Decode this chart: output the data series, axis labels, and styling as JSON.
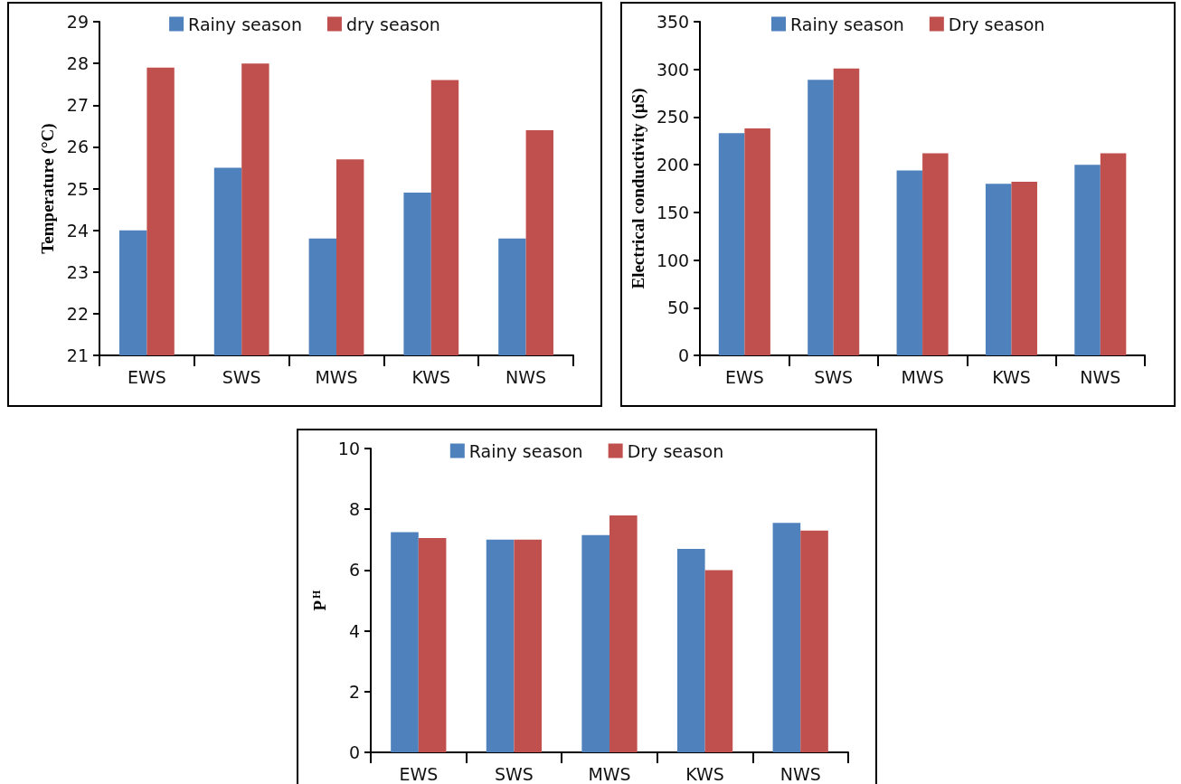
{
  "chart_data": [
    {
      "type": "bar",
      "ylabel": "Temperature (°C)",
      "categories": [
        "EWS",
        "SWS",
        "MWS",
        "KWS",
        "NWS"
      ],
      "ylim": [
        21,
        29
      ],
      "yticks": [
        21,
        22,
        23,
        24,
        25,
        26,
        27,
        28,
        29
      ],
      "grid": false,
      "legend": "top",
      "series": [
        {
          "name": "Rainy season",
          "color": "#4f81bd",
          "values": [
            24.0,
            25.5,
            23.8,
            24.9,
            23.8
          ]
        },
        {
          "name": "dry season",
          "color": "#c0504d",
          "values": [
            27.9,
            28.0,
            25.7,
            27.6,
            26.4
          ]
        }
      ]
    },
    {
      "type": "bar",
      "ylabel": "Electrical conductivity (µS)",
      "categories": [
        "EWS",
        "SWS",
        "MWS",
        "KWS",
        "NWS"
      ],
      "ylim": [
        0,
        350
      ],
      "yticks": [
        0,
        50,
        100,
        150,
        200,
        250,
        300,
        350
      ],
      "grid": false,
      "legend": "top",
      "series": [
        {
          "name": "Rainy season",
          "color": "#4f81bd",
          "values": [
            233,
            289,
            194,
            180,
            200
          ]
        },
        {
          "name": "Dry season",
          "color": "#c0504d",
          "values": [
            238,
            301,
            212,
            182,
            212
          ]
        }
      ]
    },
    {
      "type": "bar",
      "ylabel": "P$^{H}$",
      "categories": [
        "EWS",
        "SWS",
        "MWS",
        "KWS",
        "NWS"
      ],
      "ylim": [
        0,
        10
      ],
      "yticks": [
        0,
        2,
        4,
        6,
        8,
        10
      ],
      "grid": false,
      "legend": "top",
      "series": [
        {
          "name": "Rainy season",
          "color": "#4f81bd",
          "values": [
            7.25,
            7.0,
            7.15,
            6.7,
            7.55
          ]
        },
        {
          "name": "Dry season",
          "color": "#c0504d",
          "values": [
            7.05,
            7.0,
            7.8,
            6.0,
            7.3
          ]
        }
      ]
    }
  ]
}
